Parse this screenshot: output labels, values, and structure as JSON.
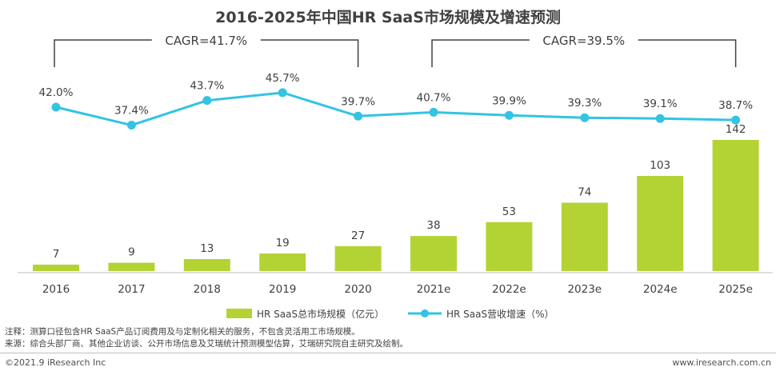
{
  "chart_data": {
    "type": "bar+line",
    "title": "2016-2025年中国HR SaaS市场规模及增速预测",
    "categories": [
      "2016",
      "2017",
      "2018",
      "2019",
      "2020",
      "2021e",
      "2022e",
      "2023e",
      "2024e",
      "2025e"
    ],
    "series": [
      {
        "name": "HR SaaS总市场规模（亿元）",
        "type": "bar",
        "color": "#b3d334",
        "values": [
          7,
          9,
          13,
          19,
          27,
          38,
          53,
          74,
          103,
          142
        ]
      },
      {
        "name": "HR SaaS营收增速（%）",
        "type": "line",
        "color": "#33c3e3",
        "values": [
          42.0,
          37.4,
          43.7,
          45.7,
          39.7,
          40.7,
          39.9,
          39.3,
          39.1,
          38.7
        ],
        "value_labels": [
          "42.0%",
          "37.4%",
          "43.7%",
          "45.7%",
          "39.7%",
          "40.7%",
          "39.9%",
          "39.3%",
          "39.1%",
          "38.7%"
        ]
      }
    ],
    "annotations": [
      {
        "text": "CAGR=41.7%",
        "from": "2016",
        "to": "2020"
      },
      {
        "text": "CAGR=39.5%",
        "from": "2021e",
        "to": "2025e"
      }
    ],
    "legend_position": "bottom",
    "grid": false
  },
  "notes": {
    "note": "注释：测算口径包含HR SaaS产品订阅费用及与定制化相关的服务，不包含灵活用工市场规模。",
    "source": "来源：综合头部厂商、其他企业访谈、公开市场信息及艾瑞统计预测模型估算，艾瑞研究院自主研究及绘制。"
  },
  "footer": {
    "copyright": "©2021.9 iResearch Inc",
    "website": "www.iresearch.com.cn"
  }
}
